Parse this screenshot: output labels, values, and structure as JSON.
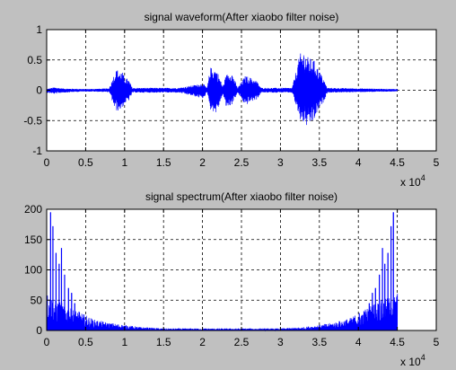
{
  "figure": {
    "background": "#c0c0c0"
  },
  "chart_data": [
    {
      "type": "line",
      "title": "signal waveform(After xiaobo filter noise)",
      "xlabel": "",
      "ylabel": "",
      "xlim": [
        0,
        50000
      ],
      "ylim": [
        -1,
        1
      ],
      "x_ticks": [
        0,
        5000,
        10000,
        15000,
        20000,
        25000,
        30000,
        35000,
        40000,
        45000,
        50000
      ],
      "x_tick_labels": [
        "0",
        "0.5",
        "1",
        "1.5",
        "2",
        "2.5",
        "3",
        "3.5",
        "4",
        "4.5",
        "5"
      ],
      "y_ticks": [
        -1,
        -0.5,
        0,
        0.5,
        1
      ],
      "y_tick_labels": [
        "-1",
        "-0.5",
        "0",
        "0.5",
        "1"
      ],
      "x_exponent": {
        "base": "x 10",
        "power": "4"
      },
      "grid": true,
      "series_color": "#0000ff",
      "approx_envelope": {
        "x": [
          0,
          1000,
          2000,
          5000,
          8000,
          8700,
          9000,
          9300,
          9700,
          10000,
          10500,
          11000,
          17000,
          19500,
          20000,
          20600,
          21000,
          21700,
          22000,
          22600,
          23000,
          23700,
          24500,
          25500,
          26000,
          27000,
          27500,
          31500,
          32500,
          33000,
          33500,
          34300,
          35000,
          35500,
          36000,
          45000
        ],
        "y_max": [
          0.02,
          0.05,
          0.03,
          0.02,
          0.03,
          0.28,
          0.35,
          0.32,
          0.3,
          0.22,
          0.18,
          0.04,
          0.04,
          0.1,
          0.12,
          0.04,
          0.38,
          0.35,
          0.28,
          0.06,
          0.25,
          0.32,
          0.04,
          0.24,
          0.22,
          0.15,
          0.04,
          0.04,
          0.6,
          0.65,
          0.55,
          0.5,
          0.32,
          0.2,
          0.04,
          0.02
        ],
        "y_min": [
          -0.04,
          -0.06,
          -0.04,
          -0.02,
          -0.03,
          -0.3,
          -0.35,
          -0.33,
          -0.3,
          -0.22,
          -0.18,
          -0.04,
          -0.04,
          -0.12,
          -0.14,
          -0.04,
          -0.32,
          -0.38,
          -0.3,
          -0.06,
          -0.28,
          -0.25,
          -0.04,
          -0.26,
          -0.2,
          -0.15,
          -0.04,
          -0.04,
          -0.5,
          -0.55,
          -0.62,
          -0.5,
          -0.3,
          -0.2,
          -0.04,
          -0.02
        ]
      }
    },
    {
      "type": "line",
      "title": "signal spectrum(After xiaobo filter noise)",
      "xlabel": "",
      "ylabel": "",
      "xlim": [
        0,
        50000
      ],
      "ylim": [
        0,
        200
      ],
      "x_ticks": [
        0,
        5000,
        10000,
        15000,
        20000,
        25000,
        30000,
        35000,
        40000,
        45000,
        50000
      ],
      "x_tick_labels": [
        "0",
        "0.5",
        "1",
        "1.5",
        "2",
        "2.5",
        "3",
        "3.5",
        "4",
        "4.5",
        "5"
      ],
      "y_ticks": [
        0,
        50,
        100,
        150,
        200
      ],
      "y_tick_labels": [
        "0",
        "50",
        "100",
        "150",
        "200"
      ],
      "x_exponent": {
        "base": "x 10",
        "power": "4"
      },
      "grid": true,
      "series_color": "#0000ff",
      "spectrum_length": 45000,
      "baseline": {
        "x": [
          0,
          500,
          1000,
          2000,
          3000,
          4000,
          5000,
          6000,
          8000,
          10000,
          12000,
          15000,
          20000,
          22500,
          25000,
          30000,
          33000,
          35000,
          37000,
          39000,
          40000,
          41000,
          42000,
          43000,
          44000,
          44500,
          45000
        ],
        "y": [
          55,
          50,
          45,
          40,
          32,
          28,
          22,
          16,
          11,
          8,
          5,
          3,
          3,
          3,
          3,
          3,
          5,
          8,
          12,
          18,
          26,
          32,
          40,
          44,
          48,
          50,
          55
        ]
      },
      "peaks": [
        {
          "x": 500,
          "y": 195
        },
        {
          "x": 800,
          "y": 172
        },
        {
          "x": 1200,
          "y": 128
        },
        {
          "x": 1600,
          "y": 110
        },
        {
          "x": 1900,
          "y": 136
        },
        {
          "x": 2300,
          "y": 92
        },
        {
          "x": 2800,
          "y": 70
        },
        {
          "x": 3200,
          "y": 62
        },
        {
          "x": 3600,
          "y": 45
        },
        {
          "x": 4200,
          "y": 30
        },
        {
          "x": 40800,
          "y": 30
        },
        {
          "x": 41400,
          "y": 45
        },
        {
          "x": 41800,
          "y": 62
        },
        {
          "x": 42200,
          "y": 70
        },
        {
          "x": 42700,
          "y": 92
        },
        {
          "x": 43100,
          "y": 136
        },
        {
          "x": 43400,
          "y": 110
        },
        {
          "x": 43800,
          "y": 128
        },
        {
          "x": 44200,
          "y": 172
        },
        {
          "x": 44500,
          "y": 195
        }
      ]
    }
  ]
}
